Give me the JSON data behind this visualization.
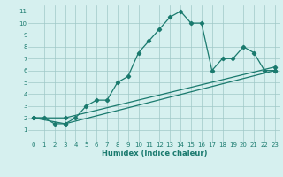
{
  "xlabel": "Humidex (Indice chaleur)",
  "bg_color": "#d6f0ef",
  "grid_color": "#a0c8c8",
  "line_color": "#1a7a6e",
  "xlim": [
    -0.5,
    23.5
  ],
  "ylim": [
    0,
    11.5
  ],
  "xticks": [
    0,
    1,
    2,
    3,
    4,
    5,
    6,
    7,
    8,
    9,
    10,
    11,
    12,
    13,
    14,
    15,
    16,
    17,
    18,
    19,
    20,
    21,
    22,
    23
  ],
  "yticks": [
    1,
    2,
    3,
    4,
    5,
    6,
    7,
    8,
    9,
    10,
    11
  ],
  "line1_x": [
    0,
    1,
    2,
    3,
    4,
    5,
    6,
    7,
    8,
    9,
    10,
    11,
    12,
    13,
    14,
    15,
    16,
    17,
    18,
    19,
    20,
    21,
    22,
    23
  ],
  "line1_y": [
    2,
    2,
    1.5,
    1.5,
    2,
    3,
    3.5,
    3.5,
    5,
    5.5,
    7.5,
    8.5,
    9.5,
    10.5,
    11,
    10,
    10,
    6,
    7,
    7,
    8,
    7.5,
    6,
    6
  ],
  "line2_x": [
    0,
    3,
    23
  ],
  "line2_y": [
    2,
    1.5,
    6
  ],
  "line3_x": [
    0,
    3,
    23
  ],
  "line3_y": [
    2,
    2,
    6.3
  ],
  "marker": "D",
  "markersize": 2.2,
  "linewidth": 0.9,
  "tick_fontsize": 5.0,
  "xlabel_fontsize": 6.0
}
